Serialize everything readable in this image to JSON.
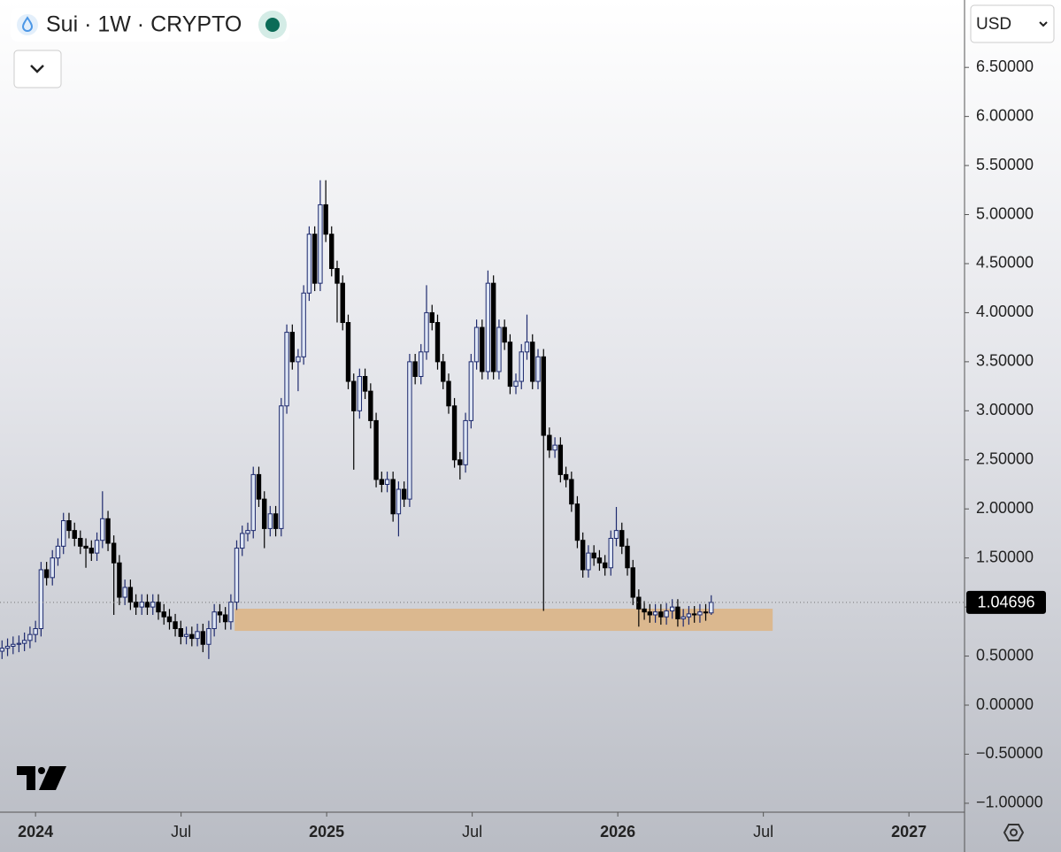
{
  "chart_data": {
    "type": "candlestick",
    "title": "Sui · 1W · CRYPTO",
    "currency": "USD",
    "x": [
      2023.885,
      2023.904,
      2023.923,
      2023.943,
      2023.962,
      2023.981,
      2024.0,
      2024.019,
      2024.038,
      2024.058,
      2024.077,
      2024.096,
      2024.115,
      2024.134,
      2024.154,
      2024.173,
      2024.192,
      2024.211,
      2024.23,
      2024.249,
      2024.269,
      2024.288,
      2024.307,
      2024.326,
      2024.345,
      2024.365,
      2024.384,
      2024.403,
      2024.422,
      2024.441,
      2024.46,
      2024.48,
      2024.499,
      2024.518,
      2024.537,
      2024.556,
      2024.575,
      2024.595,
      2024.614,
      2024.633,
      2024.652,
      2024.671,
      2024.691,
      2024.71,
      2024.729,
      2024.748,
      2024.767,
      2024.786,
      2024.806,
      2024.825,
      2024.844,
      2024.863,
      2024.882,
      2024.902,
      2024.921,
      2024.94,
      2024.959,
      2024.978,
      2024.997,
      2025.017,
      2025.036,
      2025.055,
      2025.074,
      2025.093,
      2025.113,
      2025.132,
      2025.151,
      2025.17,
      2025.189,
      2025.208,
      2025.228,
      2025.247,
      2025.266,
      2025.285,
      2025.304,
      2025.324,
      2025.343,
      2025.362,
      2025.381,
      2025.4,
      2025.419,
      2025.439,
      2025.458,
      2025.477,
      2025.496,
      2025.515,
      2025.534,
      2025.554,
      2025.573,
      2025.592,
      2025.611,
      2025.63,
      2025.65,
      2025.669,
      2025.688,
      2025.707,
      2025.726,
      2025.745,
      2025.765,
      2025.784,
      2025.803,
      2025.822,
      2025.841,
      2025.861,
      2025.88,
      2025.899,
      2025.918,
      2025.937,
      2025.956,
      2025.976,
      2025.995,
      2026.014,
      2026.033,
      2026.052,
      2026.072,
      2026.091,
      2026.11,
      2026.129,
      2026.148,
      2026.167,
      2026.187,
      2026.206,
      2026.225,
      2026.244,
      2026.263,
      2026.282,
      2026.302,
      2026.321
    ],
    "open": [
      0.55,
      0.58,
      0.6,
      0.62,
      0.63,
      0.66,
      0.72,
      0.78,
      1.38,
      1.3,
      1.5,
      1.62,
      1.88,
      1.78,
      1.7,
      1.62,
      1.6,
      1.55,
      1.68,
      1.9,
      1.65,
      1.45,
      1.1,
      1.2,
      1.05,
      1.0,
      1.05,
      1.0,
      1.05,
      0.95,
      0.9,
      0.85,
      0.78,
      0.7,
      0.72,
      0.68,
      0.75,
      0.62,
      0.78,
      0.95,
      0.92,
      0.85,
      1.05,
      1.6,
      1.75,
      1.78,
      2.35,
      2.1,
      1.8,
      1.95,
      1.8,
      3.05,
      3.8,
      3.5,
      3.55,
      4.2,
      4.8,
      4.3,
      5.1,
      4.8,
      4.45,
      4.3,
      3.9,
      3.3,
      3.0,
      3.35,
      3.2,
      2.9,
      2.3,
      2.25,
      2.3,
      1.95,
      2.2,
      2.1,
      3.5,
      3.35,
      3.6,
      4.0,
      3.9,
      3.5,
      3.3,
      3.05,
      2.5,
      2.45,
      2.9,
      3.5,
      3.85,
      3.4,
      4.3,
      3.4,
      3.85,
      3.7,
      3.25,
      3.3,
      3.6,
      3.7,
      3.3,
      3.55,
      2.75,
      2.6,
      2.65,
      2.35,
      2.3,
      2.05,
      1.68,
      1.38,
      1.55,
      1.5,
      1.45,
      1.4,
      1.7,
      1.78,
      1.62,
      1.4,
      1.1,
      0.98,
      0.95,
      0.92,
      0.95,
      0.9,
      0.96,
      1.0,
      0.88,
      0.9,
      0.93,
      0.92,
      0.95,
      0.94
    ],
    "high": [
      0.66,
      0.68,
      0.7,
      0.71,
      0.74,
      0.8,
      0.86,
      1.46,
      1.46,
      1.58,
      1.7,
      1.96,
      1.96,
      1.86,
      1.78,
      1.7,
      1.68,
      1.76,
      2.18,
      1.98,
      1.73,
      1.53,
      1.28,
      1.28,
      1.13,
      1.13,
      1.13,
      1.13,
      1.13,
      1.03,
      0.98,
      0.93,
      0.86,
      0.8,
      0.8,
      0.83,
      0.83,
      0.86,
      1.03,
      1.03,
      1.0,
      1.13,
      1.68,
      1.83,
      1.86,
      2.43,
      2.43,
      2.18,
      2.03,
      2.03,
      3.13,
      3.88,
      3.88,
      3.63,
      4.28,
      4.88,
      4.88,
      5.35,
      5.35,
      4.88,
      4.53,
      4.38,
      3.98,
      3.38,
      3.43,
      3.43,
      3.28,
      2.98,
      2.38,
      2.38,
      2.38,
      2.28,
      2.28,
      3.58,
      3.58,
      3.68,
      4.28,
      4.08,
      3.98,
      3.58,
      3.38,
      3.13,
      2.58,
      2.98,
      3.58,
      3.93,
      3.93,
      4.43,
      4.38,
      3.93,
      3.93,
      3.78,
      3.38,
      3.68,
      3.98,
      3.78,
      3.63,
      3.63,
      2.83,
      2.73,
      2.73,
      2.43,
      2.38,
      2.13,
      1.76,
      1.63,
      1.63,
      1.58,
      1.53,
      1.78,
      2.02,
      1.86,
      1.7,
      1.48,
      1.18,
      1.06,
      1.03,
      1.03,
      1.03,
      1.04,
      1.08,
      1.08,
      0.98,
      1.01,
      1.01,
      1.03,
      1.03,
      1.12
    ],
    "low": [
      0.47,
      0.5,
      0.52,
      0.54,
      0.55,
      0.58,
      0.64,
      0.7,
      1.22,
      1.22,
      1.42,
      1.54,
      1.7,
      1.62,
      1.54,
      1.4,
      1.47,
      1.47,
      1.6,
      1.57,
      0.92,
      1.02,
      1.02,
      0.97,
      0.92,
      0.92,
      0.92,
      0.92,
      0.87,
      0.82,
      0.77,
      0.7,
      0.62,
      0.62,
      0.6,
      0.6,
      0.54,
      0.47,
      0.7,
      0.84,
      0.77,
      0.77,
      0.97,
      1.52,
      1.67,
      1.7,
      2.02,
      1.6,
      1.72,
      1.72,
      1.72,
      2.97,
      3.42,
      3.2,
      3.47,
      4.12,
      4.22,
      4.22,
      4.72,
      4.37,
      3.9,
      3.82,
      3.22,
      2.4,
      2.92,
      3.12,
      2.82,
      2.22,
      2.17,
      2.17,
      1.87,
      1.72,
      2.02,
      2.02,
      3.27,
      3.27,
      3.52,
      3.82,
      3.42,
      3.22,
      2.97,
      2.42,
      2.3,
      2.37,
      2.82,
      3.42,
      3.32,
      3.32,
      3.32,
      3.32,
      3.62,
      3.17,
      3.17,
      3.22,
      3.52,
      3.22,
      3.22,
      0.96,
      2.52,
      2.52,
      2.27,
      2.22,
      1.97,
      1.6,
      1.3,
      1.3,
      1.42,
      1.37,
      1.32,
      1.32,
      1.62,
      1.54,
      1.32,
      1.02,
      0.8,
      0.87,
      0.84,
      0.84,
      0.82,
      0.82,
      0.88,
      0.8,
      0.8,
      0.82,
      0.84,
      0.84,
      0.86,
      0.92
    ],
    "close": [
      0.58,
      0.6,
      0.62,
      0.63,
      0.66,
      0.72,
      0.78,
      1.38,
      1.3,
      1.5,
      1.62,
      1.88,
      1.78,
      1.7,
      1.62,
      1.6,
      1.55,
      1.68,
      1.9,
      1.65,
      1.45,
      1.1,
      1.2,
      1.05,
      1.0,
      1.05,
      1.0,
      1.05,
      0.95,
      0.9,
      0.85,
      0.78,
      0.7,
      0.72,
      0.68,
      0.75,
      0.62,
      0.78,
      0.95,
      0.92,
      0.85,
      1.05,
      1.6,
      1.75,
      1.78,
      2.35,
      2.1,
      1.8,
      1.95,
      1.8,
      3.05,
      3.8,
      3.5,
      3.55,
      4.2,
      4.8,
      4.3,
      5.1,
      4.8,
      4.45,
      4.3,
      3.9,
      3.3,
      3.0,
      3.35,
      3.2,
      2.9,
      2.3,
      2.25,
      2.3,
      1.95,
      2.2,
      2.1,
      3.5,
      3.35,
      3.6,
      4.0,
      3.9,
      3.5,
      3.3,
      3.05,
      2.5,
      2.45,
      2.9,
      3.5,
      3.85,
      3.4,
      4.3,
      3.4,
      3.85,
      3.7,
      3.25,
      3.3,
      3.6,
      3.7,
      3.3,
      3.55,
      2.75,
      2.6,
      2.65,
      2.35,
      2.3,
      2.05,
      1.68,
      1.38,
      1.55,
      1.5,
      1.45,
      1.4,
      1.7,
      1.78,
      1.62,
      1.4,
      1.1,
      0.98,
      0.95,
      0.92,
      0.95,
      0.9,
      0.96,
      1.0,
      0.88,
      0.9,
      0.93,
      0.92,
      0.95,
      0.94,
      1.04696
    ],
    "up_color": "#dfe7f5",
    "up_border": "#1e2a6e",
    "down_color": "#000000",
    "zone": {
      "x": [
        2024.684,
        2026.532
      ],
      "y": [
        0.757,
        0.983
      ],
      "color": "#dbb88f"
    },
    "xlim": [
      2023.878,
      2027.191
    ],
    "ylim": [
      -1.091,
      7.187
    ],
    "xticks": [
      2024,
      {
        "value": 2024.5,
        "label": "Jul"
      },
      2025,
      {
        "value": 2025.5,
        "label": "Jul"
      },
      2026,
      {
        "value": 2026.5,
        "label": "Jul"
      },
      2027
    ],
    "yticks": [
      {
        "value": -1,
        "label": "−1.00000"
      },
      {
        "value": -0.5,
        "label": "−0.50000"
      },
      {
        "value": 0,
        "label": "0.00000"
      },
      {
        "value": 0.5,
        "label": "0.50000"
      },
      {
        "value": 1,
        "label": "1.00000"
      },
      {
        "value": 1.5,
        "label": "1.50000"
      },
      {
        "value": 2,
        "label": "2.00000"
      },
      {
        "value": 2.5,
        "label": "2.50000"
      },
      {
        "value": 3,
        "label": "3.00000"
      },
      {
        "value": 3.5,
        "label": "3.50000"
      },
      {
        "value": 4,
        "label": "4.00000"
      },
      {
        "value": 4.5,
        "label": "4.50000"
      },
      {
        "value": 5,
        "label": "5.00000"
      },
      {
        "value": 5.5,
        "label": "5.50000"
      },
      {
        "value": 6,
        "label": "6.00000"
      },
      {
        "value": 6.5,
        "label": "6.50000"
      }
    ],
    "grid": false
  }
}
